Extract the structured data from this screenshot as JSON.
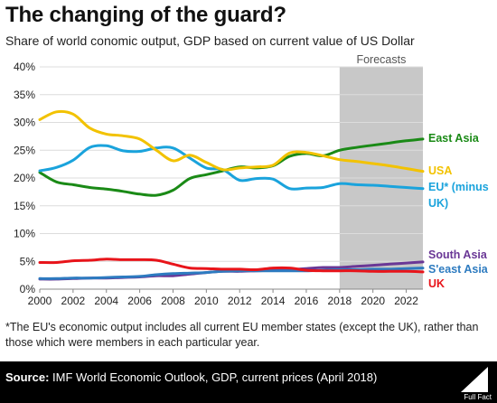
{
  "header": {
    "title": "The changing of the guard?",
    "subtitle": "Share of world conomic output, GDP based on current value of US Dollar"
  },
  "footnote": "*The EU's economic output includes all current EU member states (except the UK), rather than those which were members in each particular year.",
  "source": {
    "label": "Source:",
    "text": "IMF World Economic Outlook, GDP, current prices (April 2018)"
  },
  "logo": {
    "text": "Full Fact",
    "icon": "fullfact-logo-icon"
  },
  "chart_data": {
    "type": "line",
    "x": [
      2000,
      2001,
      2002,
      2003,
      2004,
      2005,
      2006,
      2007,
      2008,
      2009,
      2010,
      2011,
      2012,
      2013,
      2014,
      2015,
      2016,
      2017,
      2018,
      2019,
      2020,
      2021,
      2022,
      2023
    ],
    "xlim": [
      2000,
      2023
    ],
    "ylim": [
      0,
      40
    ],
    "x_ticks": [
      "2000",
      "2002",
      "2004",
      "2006",
      "2008",
      "2010",
      "2012",
      "2014",
      "2016",
      "2018",
      "2020",
      "2022"
    ],
    "y_ticks": [
      "0%",
      "5%",
      "10%",
      "15%",
      "20%",
      "25%",
      "30%",
      "35%",
      "40%"
    ],
    "grid": "horizontal",
    "forecast": {
      "label": "Forecasts",
      "from": 2018,
      "to": 2023,
      "color": "#c8c8c8"
    },
    "series": [
      {
        "name": "East Asia",
        "color": "#1a8a16",
        "values": [
          21.0,
          19.3,
          18.8,
          18.3,
          18.0,
          17.6,
          17.1,
          16.9,
          17.8,
          19.9,
          20.6,
          21.3,
          22.0,
          21.8,
          22.2,
          23.9,
          24.4,
          24.0,
          25.0,
          25.5,
          25.9,
          26.3,
          26.7,
          27.0
        ]
      },
      {
        "name": "USA",
        "color": "#f2c200",
        "values": [
          30.5,
          31.9,
          31.5,
          29.0,
          27.9,
          27.6,
          27.0,
          25.0,
          23.1,
          24.1,
          22.8,
          21.5,
          21.8,
          22.0,
          22.3,
          24.5,
          24.6,
          24.0,
          23.3,
          23.0,
          22.6,
          22.2,
          21.7,
          21.2
        ]
      },
      {
        "name": "EU* (minus UK)",
        "color": "#1aa3dc",
        "values": [
          21.3,
          21.9,
          23.2,
          25.5,
          25.8,
          24.9,
          24.8,
          25.4,
          25.4,
          23.6,
          21.8,
          21.5,
          19.6,
          19.9,
          19.8,
          18.1,
          18.2,
          18.3,
          19.0,
          18.8,
          18.7,
          18.5,
          18.3,
          18.1
        ]
      },
      {
        "name": "South Asia",
        "color": "#6a3796",
        "values": [
          1.8,
          1.8,
          1.9,
          2.0,
          2.0,
          2.1,
          2.2,
          2.4,
          2.4,
          2.7,
          3.0,
          3.2,
          3.2,
          3.3,
          3.4,
          3.5,
          3.7,
          3.9,
          3.9,
          4.1,
          4.3,
          4.5,
          4.7,
          4.9
        ]
      },
      {
        "name": "S'east Asia",
        "color": "#2d7bc0",
        "values": [
          1.9,
          1.9,
          2.0,
          2.0,
          2.1,
          2.2,
          2.3,
          2.6,
          2.8,
          2.9,
          3.0,
          3.2,
          3.3,
          3.3,
          3.3,
          3.3,
          3.3,
          3.4,
          3.5,
          3.5,
          3.6,
          3.6,
          3.7,
          3.8
        ]
      },
      {
        "name": "UK",
        "color": "#e8141a",
        "values": [
          4.8,
          4.8,
          5.1,
          5.2,
          5.4,
          5.3,
          5.3,
          5.2,
          4.5,
          3.8,
          3.7,
          3.6,
          3.6,
          3.5,
          3.8,
          3.8,
          3.4,
          3.3,
          3.3,
          3.3,
          3.2,
          3.2,
          3.2,
          3.1
        ]
      }
    ]
  }
}
